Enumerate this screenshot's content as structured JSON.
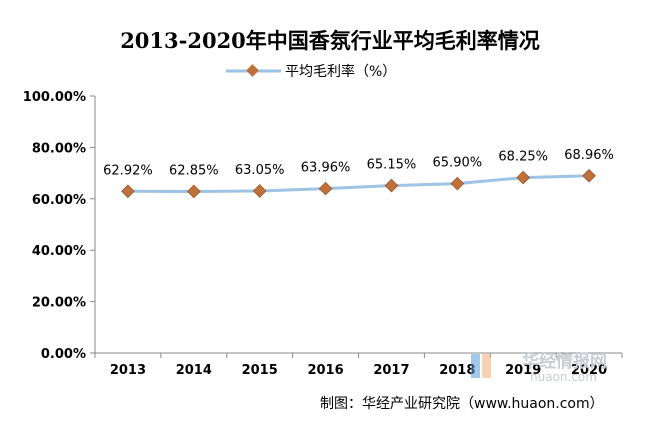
{
  "chart_data": {
    "type": "line",
    "title": "2013-2020年中国香氛行业平均毛利率情况",
    "legend": "平均毛利率（%）",
    "legend_position": "top-center",
    "categories": [
      "2013",
      "2014",
      "2015",
      "2016",
      "2017",
      "2018",
      "2019",
      "2020"
    ],
    "series": [
      {
        "name": "平均毛利率（%）",
        "values": [
          62.92,
          62.85,
          63.05,
          63.96,
          65.15,
          65.9,
          68.25,
          68.96
        ],
        "labels": [
          "62.92%",
          "62.85%",
          "63.05%",
          "63.96%",
          "65.15%",
          "65.90%",
          "68.25%",
          "68.96%"
        ],
        "line_color": "#9dc3e6",
        "marker_color": "#c0703a"
      }
    ],
    "ylim": [
      0,
      100
    ],
    "yticks": [
      "0.00%",
      "20.00%",
      "40.00%",
      "60.00%",
      "80.00%",
      "100.00%"
    ],
    "grid": false
  },
  "source": "制图：华经产业研究院（www.huaon.com）",
  "watermark": {
    "main": "华经情报网",
    "sub": "huaon.com"
  }
}
